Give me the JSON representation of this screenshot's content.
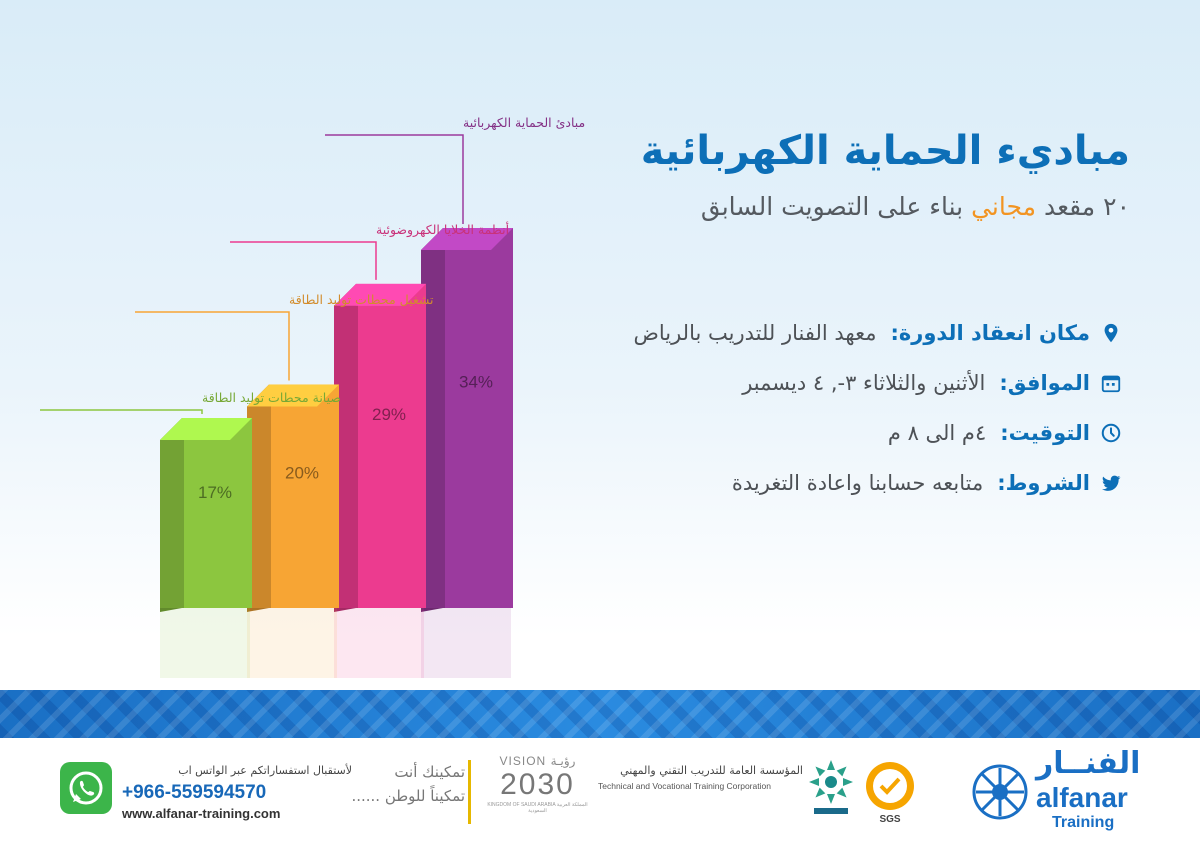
{
  "header": {
    "title": "مباديء الحماية الكهربائية",
    "subtitle_pre": "٢٠ مقعد ",
    "subtitle_highlight": "مجاني",
    "subtitle_post": " بناء على التصويت السابق"
  },
  "info": [
    {
      "icon": "location-pin-icon",
      "label": "مكان انعقاد الدورة:",
      "value": "معهد الفنار للتدريب بالرياض"
    },
    {
      "icon": "calendar-icon",
      "label": "الموافق:",
      "value": "الأثنين والثلاثاء ٣-, ٤ ديسمبر"
    },
    {
      "icon": "clock-icon",
      "label": "التوقيت:",
      "value": "٤م الى ٨ م"
    },
    {
      "icon": "twitter-icon",
      "label": "الشروط:",
      "value": "متابعه حسابنا واعادة التغريدة"
    }
  ],
  "chart_data": {
    "type": "bar",
    "categories": [
      "صيانة محطات توليد الطاقة",
      "تشغيل محطات توليد الطاقة",
      "أنظمة الخلايا الكهروضوئية",
      "مبادئ الحماية الكهربائية"
    ],
    "values": [
      17,
      20,
      29,
      34
    ],
    "value_labels": [
      "17%",
      "20%",
      "29%",
      "34%"
    ],
    "colors": [
      "#8cc63f",
      "#f7a534",
      "#ec3b8f",
      "#9b3a9e"
    ],
    "legend": "none",
    "grid": false
  },
  "footer": {
    "whatsapp_cta": "لأستقبال استفساراتكم عبر الواتس اب",
    "phone": "+966-559594570",
    "website": "www.alfanar-training.com",
    "slogan_line1": "تمكينك أنت",
    "slogan_line2": "تمكيناً للوطن ......",
    "vision_top": "VISION رؤيـة",
    "vision_year": "2030",
    "vision_sub": "KINGDOM OF SAUDI ARABIA المملكة العربية السعودية",
    "tvtc_ar": "المؤسسة العامة للتدريب التقني والمهني",
    "tvtc_en": "Technical and Vocational Training Corporation",
    "sgs_label": "SGS",
    "brand_ar": "الفنــار",
    "brand_en": "alfanar",
    "brand_training": "Training"
  }
}
